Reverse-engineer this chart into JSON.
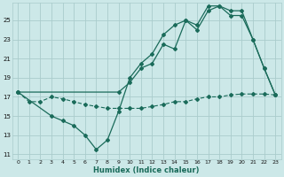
{
  "xlabel": "Humidex (Indice chaleur)",
  "bg_color": "#cce8e8",
  "grid_color": "#aacccc",
  "line_color": "#1a6b5a",
  "xlim": [
    -0.5,
    23.5
  ],
  "ylim": [
    10.5,
    26.8
  ],
  "yticks": [
    11,
    13,
    15,
    17,
    19,
    21,
    23,
    25
  ],
  "xticks": [
    0,
    1,
    2,
    3,
    4,
    5,
    6,
    7,
    8,
    9,
    10,
    11,
    12,
    13,
    14,
    15,
    16,
    17,
    18,
    19,
    20,
    21,
    22,
    23
  ],
  "lineA_x": [
    0,
    9,
    10,
    11,
    12,
    13,
    14,
    15,
    16,
    17,
    18,
    19,
    20,
    21,
    22,
    23
  ],
  "lineA_y": [
    17.5,
    17.5,
    18.5,
    20.0,
    20.5,
    22.5,
    22.0,
    25.0,
    24.5,
    26.5,
    26.5,
    26.0,
    26.0,
    23.0,
    20.0,
    17.2
  ],
  "lineB_x": [
    0,
    3,
    4,
    5,
    6,
    7,
    8,
    9,
    10,
    11,
    12,
    13,
    14,
    15,
    16,
    17,
    18,
    19,
    20,
    21,
    22,
    23
  ],
  "lineB_y": [
    17.5,
    15.0,
    14.5,
    14.0,
    13.0,
    11.5,
    12.5,
    15.5,
    19.0,
    20.5,
    21.5,
    23.5,
    24.5,
    25.0,
    24.0,
    26.0,
    26.5,
    25.5,
    25.5,
    23.0,
    20.0,
    17.2
  ],
  "lineC_x": [
    0,
    1,
    2,
    3,
    4,
    5,
    6,
    7,
    8,
    9,
    10,
    11,
    12,
    13,
    14,
    15,
    16,
    17,
    18,
    19,
    20,
    21,
    22,
    23
  ],
  "lineC_y": [
    17.5,
    16.5,
    16.5,
    17.0,
    16.8,
    16.5,
    16.2,
    16.0,
    15.8,
    15.8,
    15.8,
    15.8,
    16.0,
    16.2,
    16.5,
    16.5,
    16.8,
    17.0,
    17.0,
    17.2,
    17.3,
    17.3,
    17.3,
    17.2
  ]
}
